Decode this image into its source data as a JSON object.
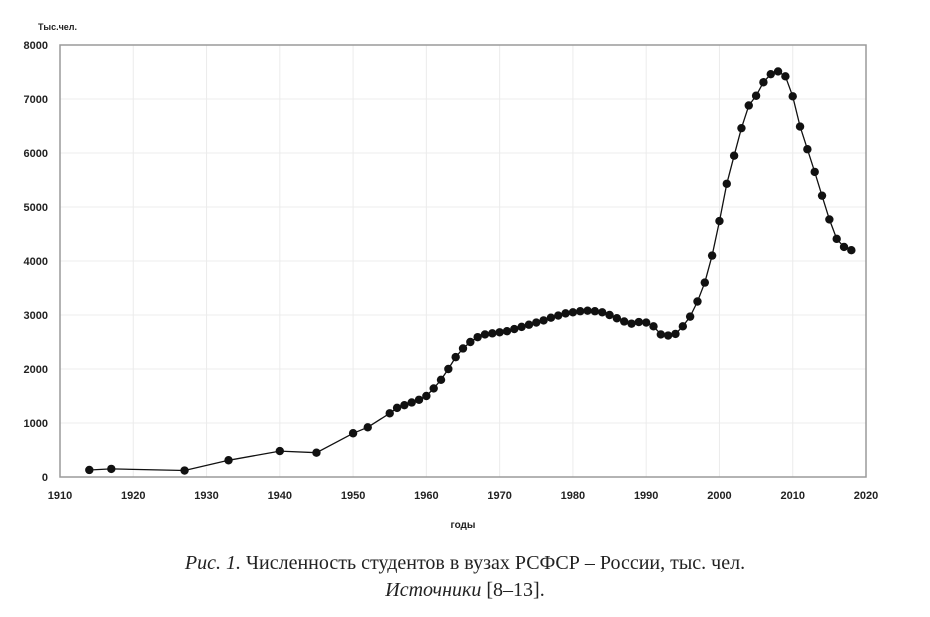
{
  "figure": {
    "y_unit_label": "Тыс.чел.",
    "x_axis_label": "годы",
    "caption_prefix": "Рис. 1.",
    "caption_text": " Численность студентов в вузах РСФСР – России, тыс. чел.",
    "sources_label": "Источники",
    "sources_refs": " [8–13]."
  },
  "chart_data": {
    "type": "line",
    "title": "Численность студентов в вузах РСФСР – России, тыс. чел.",
    "xlabel": "годы",
    "ylabel": "Тыс.чел.",
    "xlim": [
      1910,
      2020
    ],
    "ylim": [
      0,
      8000
    ],
    "x_ticks": [
      1910,
      1920,
      1930,
      1940,
      1950,
      1960,
      1970,
      1980,
      1990,
      2000,
      2010,
      2020
    ],
    "y_ticks": [
      0,
      1000,
      2000,
      3000,
      4000,
      5000,
      6000,
      7000,
      8000
    ],
    "grid": true,
    "legend": null,
    "marker": "filled-circle",
    "line_color": "#111111",
    "x": [
      1914,
      1917,
      1927,
      1933,
      1940,
      1945,
      1950,
      1952,
      1955,
      1956,
      1957,
      1958,
      1959,
      1960,
      1961,
      1962,
      1963,
      1964,
      1965,
      1966,
      1967,
      1968,
      1969,
      1970,
      1971,
      1972,
      1973,
      1974,
      1975,
      1976,
      1977,
      1978,
      1979,
      1980,
      1981,
      1982,
      1983,
      1984,
      1985,
      1986,
      1987,
      1988,
      1989,
      1990,
      1991,
      1992,
      1993,
      1994,
      1995,
      1996,
      1997,
      1998,
      1999,
      2000,
      2001,
      2002,
      2003,
      2004,
      2005,
      2006,
      2007,
      2008,
      2009,
      2010,
      2011,
      2012,
      2013,
      2014,
      2015,
      2016,
      2017,
      2018
    ],
    "values": [
      130,
      150,
      120,
      310,
      480,
      450,
      810,
      920,
      1180,
      1280,
      1330,
      1380,
      1430,
      1500,
      1640,
      1800,
      2000,
      2220,
      2380,
      2500,
      2590,
      2640,
      2660,
      2680,
      2700,
      2740,
      2780,
      2820,
      2860,
      2900,
      2950,
      2990,
      3030,
      3050,
      3070,
      3080,
      3070,
      3050,
      3000,
      2940,
      2880,
      2840,
      2870,
      2860,
      2790,
      2640,
      2620,
      2650,
      2790,
      2970,
      3250,
      3600,
      4100,
      4740,
      5430,
      5950,
      6460,
      6880,
      7060,
      7310,
      7460,
      7510,
      7420,
      7050,
      6490,
      6070,
      5650,
      5210,
      4770,
      4410,
      4260,
      4200
    ]
  }
}
